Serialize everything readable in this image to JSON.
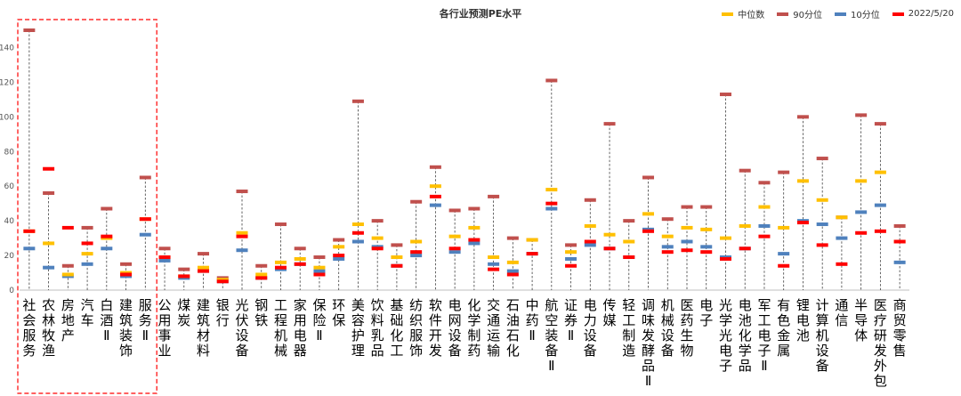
{
  "chart_data": {
    "type": "range",
    "title": "各行业预测PE水平",
    "ylim": [
      0,
      150
    ],
    "yticks": [
      0,
      20,
      40,
      60,
      80,
      100,
      120,
      140
    ],
    "legend": [
      {
        "name": "中位数",
        "color": "#FFC000"
      },
      {
        "name": "90分位",
        "color": "#C0504D"
      },
      {
        "name": "10分位",
        "color": "#4F81BD"
      },
      {
        "name": "2022/5/20",
        "color": "#FF0000"
      }
    ],
    "highlight_box": {
      "label": "",
      "from_category": 0,
      "to_category": 6
    },
    "categories": [
      "社会服务",
      "农林牧渔",
      "房地产",
      "汽车",
      "白酒Ⅱ",
      "建筑装饰",
      "服务Ⅱ",
      "公用事业",
      "煤炭",
      "建筑材料",
      "银行",
      "光伏设备",
      "钢铁",
      "工程机械",
      "家用电器",
      "保险Ⅱ",
      "环保",
      "美容护理",
      "饮料乳品",
      "基础化工",
      "纺织服饰",
      "软件开发",
      "电网设备",
      "化学制药",
      "交通运输",
      "石油石化",
      "中药Ⅱ",
      "航空装备Ⅱ",
      "证券Ⅱ",
      "电力设备",
      "传媒",
      "轻工制造",
      "调味发酵品Ⅱ",
      "机械设备",
      "医药生物",
      "电子",
      "光学光电子",
      "电池化学品",
      "军工电子Ⅱ",
      "有色金属",
      "锂电池",
      "计算机设备",
      "通信",
      "半导体",
      "医疗研发外包",
      "商贸零售"
    ],
    "series": [
      {
        "name": "90分位",
        "values": [
          150,
          56,
          14,
          36,
          47,
          15,
          65,
          24,
          12,
          21,
          7,
          57,
          14,
          38,
          24,
          19,
          29,
          109,
          40,
          26,
          51,
          71,
          46,
          47,
          54,
          30,
          29,
          121,
          26,
          52,
          96,
          40,
          65,
          41,
          48,
          48,
          113,
          69,
          62,
          68,
          100,
          76,
          42,
          101,
          96,
          37
        ]
      },
      {
        "name": "中位数",
        "values": [
          34,
          27,
          9,
          21,
          30,
          10,
          41,
          19,
          8,
          13,
          6,
          33,
          9,
          16,
          18,
          13,
          25,
          38,
          30,
          19,
          28,
          60,
          31,
          36,
          19,
          16,
          29,
          58,
          22,
          37,
          32,
          28,
          44,
          31,
          36,
          35,
          30,
          37,
          48,
          36,
          63,
          52,
          42,
          63,
          68,
          28
        ]
      },
      {
        "name": "10分位",
        "values": [
          24,
          13,
          8,
          15,
          24,
          8,
          32,
          17,
          7,
          11,
          5,
          23,
          7,
          12,
          15,
          11,
          18,
          28,
          25,
          14,
          20,
          49,
          22,
          27,
          15,
          11,
          21,
          47,
          18,
          26,
          24,
          19,
          35,
          25,
          28,
          25,
          19,
          24,
          37,
          21,
          40,
          38,
          30,
          45,
          49,
          16
        ]
      },
      {
        "name": "2022/5/20",
        "values": [
          34,
          70,
          36,
          27,
          31,
          9,
          41,
          19,
          8,
          11,
          5,
          31,
          7,
          13,
          15,
          9,
          20,
          33,
          24,
          14,
          22,
          54,
          24,
          29,
          12,
          9,
          21,
          50,
          14,
          28,
          24,
          19,
          34,
          22,
          23,
          22,
          18,
          24,
          31,
          14,
          39,
          26,
          15,
          33,
          34,
          28
        ]
      }
    ]
  }
}
